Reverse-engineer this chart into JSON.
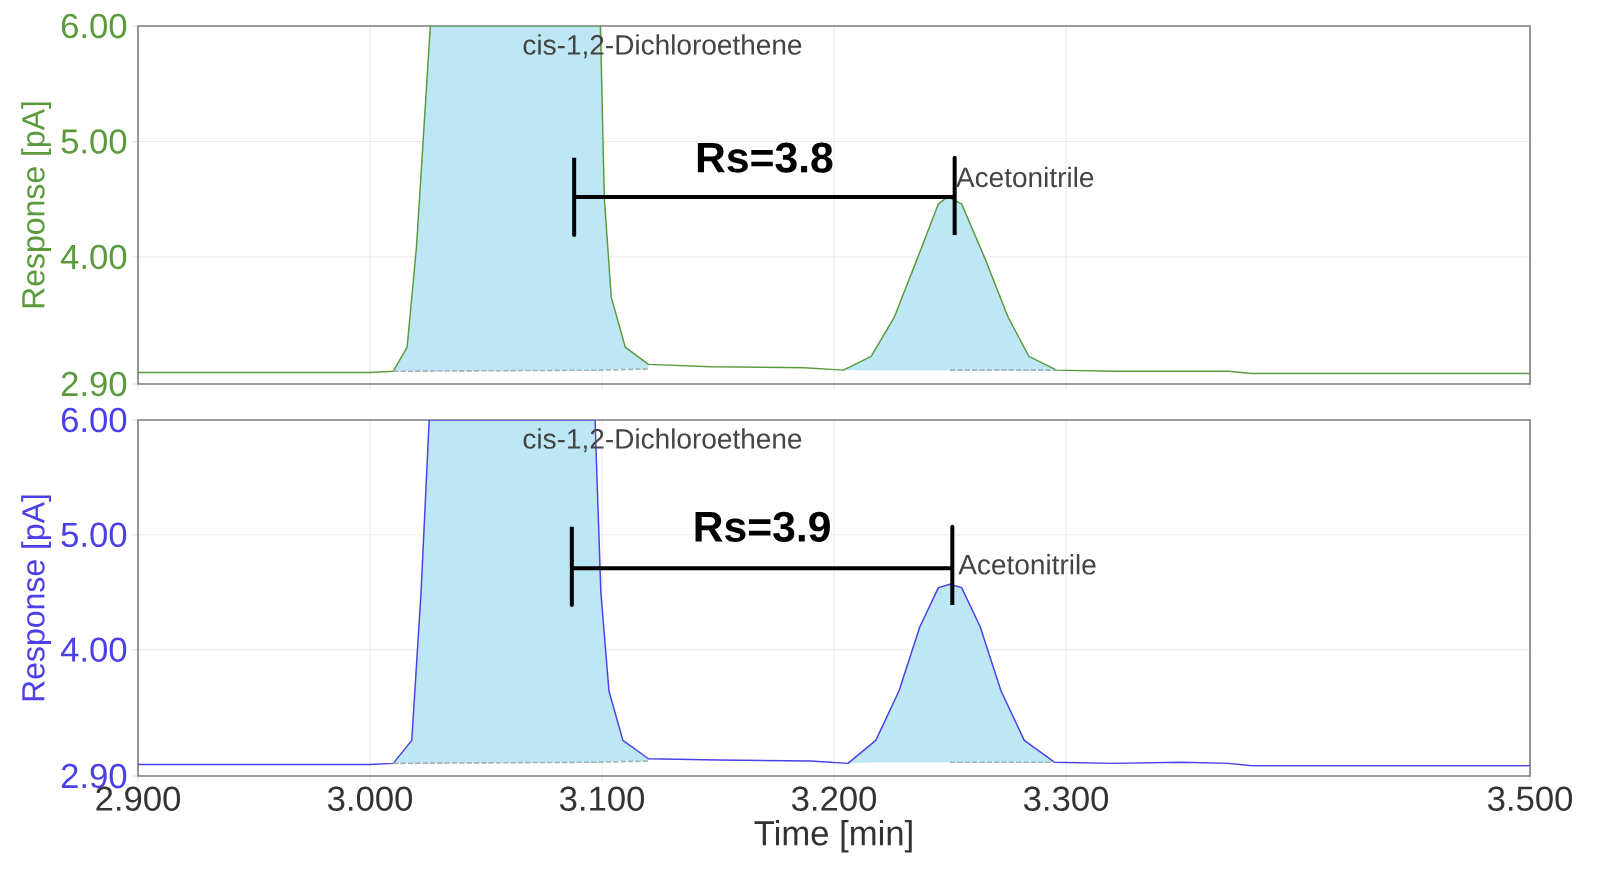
{
  "chart_data": [
    {
      "type": "line",
      "ylabel": "Response [pA]",
      "xlim": [
        2.9,
        3.5
      ],
      "ylim": [
        2.9,
        6.0
      ],
      "xticks": [
        {
          "value": 2.9,
          "label": null
        },
        {
          "value": 3.0,
          "label": null
        },
        {
          "value": 3.1,
          "label": null
        },
        {
          "value": 3.2,
          "label": null
        },
        {
          "value": 3.3,
          "label": null
        },
        {
          "value": 3.5,
          "label": null
        }
      ],
      "yticks": [
        {
          "value": 2.9,
          "label": "2.90"
        },
        {
          "value": 4.0,
          "label": "4.00"
        },
        {
          "value": 5.0,
          "label": "5.00"
        },
        {
          "value": 6.0,
          "label": "6.00"
        }
      ],
      "tick_labels": "y",
      "grid": true,
      "series": [
        {
          "color": "#5b9a3c",
          "x": [
            2.9,
            2.95,
            3.0,
            3.01,
            3.016,
            3.02,
            3.024,
            3.026,
            3.0993,
            3.101,
            3.104,
            3.11,
            3.12,
            3.147,
            3.187,
            3.204,
            3.216,
            3.226,
            3.236,
            3.245,
            3.249,
            3.255,
            3.265,
            3.275,
            3.284,
            3.296,
            3.32,
            3.37,
            3.38,
            3.45,
            3.5
          ],
          "values": [
            3.0,
            3.0,
            3.0,
            3.01,
            3.22,
            4.08,
            5.36,
            6.0,
            6.0,
            4.51,
            3.65,
            3.22,
            3.07,
            3.05,
            3.04,
            3.02,
            3.14,
            3.48,
            3.99,
            4.46,
            4.52,
            4.46,
            3.99,
            3.48,
            3.14,
            3.02,
            3.01,
            3.01,
            2.99,
            2.99,
            2.99
          ],
          "upper": [
            null,
            null,
            null,
            3.01,
            3.22,
            4.08,
            5.36,
            6.0,
            6.0,
            4.51,
            3.65,
            3.22,
            3.07,
            null,
            null,
            3.02,
            3.14,
            3.48,
            3.99,
            4.46,
            4.52,
            4.46,
            3.99,
            3.48,
            3.14,
            3.02,
            null,
            null,
            null,
            null,
            null
          ],
          "lower": [
            null,
            null,
            null,
            3.01,
            3.01,
            3.01,
            3.01,
            3.01,
            3.02,
            3.02,
            3.03,
            3.03,
            3.03,
            null,
            null,
            3.02,
            3.02,
            3.02,
            3.02,
            3.02,
            3.02,
            3.02,
            3.02,
            3.02,
            3.02,
            3.02,
            null,
            null,
            null,
            null,
            null
          ]
        },
        {
          "color": "#9fb5b5",
          "line_style": "dashed",
          "x": [
            3.01,
            3.0993,
            3.12,
            3.204,
            3.25,
            3.296
          ],
          "values": [
            3.01,
            3.02,
            3.03,
            null,
            3.02,
            3.02
          ]
        },
        {
          "name": "Rs=3.8",
          "color": "#000000",
          "x": [
            3.088,
            3.088,
            3.088,
            3.252,
            3.252,
            3.252
          ],
          "values": [
            4.86,
            4.19,
            4.52,
            4.52,
            4.86,
            4.19
          ]
        }
      ],
      "annotations": [
        "cis-1,2-Dichloroethene",
        "Acetonitrile"
      ]
    },
    {
      "type": "line",
      "xlabel": "Time [min]",
      "ylabel": "Response [pA]",
      "xlim": [
        2.9,
        3.5
      ],
      "ylim": [
        2.9,
        6.0
      ],
      "xticks": [
        {
          "value": 2.9,
          "label": "2.900"
        },
        {
          "value": 3.0,
          "label": "3.000"
        },
        {
          "value": 3.1,
          "label": "3.100"
        },
        {
          "value": 3.2,
          "label": "3.200"
        },
        {
          "value": 3.3,
          "label": "3.300"
        },
        {
          "value": 3.5,
          "label": "3.500"
        }
      ],
      "yticks": [
        {
          "value": 2.9,
          "label": "2.90"
        },
        {
          "value": 4.0,
          "label": "4.00"
        },
        {
          "value": 5.0,
          "label": "5.00"
        },
        {
          "value": 6.0,
          "label": "6.00"
        }
      ],
      "grid": true,
      "series": [
        {
          "color": "#4b3fe6",
          "x": [
            2.9,
            2.95,
            3.0,
            3.01,
            3.018,
            3.022,
            3.0255,
            3.097,
            3.0995,
            3.103,
            3.109,
            3.12,
            3.15,
            3.19,
            3.206,
            3.218,
            3.228,
            3.237,
            3.245,
            3.25,
            3.255,
            3.263,
            3.272,
            3.282,
            3.295,
            3.32,
            3.35,
            3.37,
            3.38,
            3.45,
            3.5
          ],
          "values": [
            3.0,
            3.0,
            3.0,
            3.01,
            3.21,
            4.5,
            6.0,
            6.0,
            4.5,
            3.64,
            3.21,
            3.05,
            3.04,
            3.03,
            3.01,
            3.21,
            3.64,
            4.2,
            4.54,
            4.57,
            4.54,
            4.2,
            3.64,
            3.21,
            3.02,
            3.01,
            3.02,
            3.01,
            2.99,
            2.99,
            2.99
          ],
          "upper": [
            null,
            null,
            null,
            3.01,
            3.21,
            4.5,
            6.0,
            6.0,
            4.5,
            3.64,
            3.21,
            3.05,
            null,
            null,
            3.01,
            3.21,
            3.64,
            4.2,
            4.54,
            4.57,
            4.54,
            4.2,
            3.64,
            3.21,
            3.02,
            null,
            null,
            null,
            null,
            null,
            null
          ],
          "lower": [
            null,
            null,
            null,
            3.01,
            3.01,
            3.01,
            3.01,
            3.02,
            3.02,
            3.03,
            3.03,
            3.03,
            null,
            null,
            3.01,
            3.02,
            3.02,
            3.02,
            3.02,
            3.02,
            3.02,
            3.02,
            3.02,
            3.02,
            3.02,
            null,
            null,
            null,
            null,
            null,
            null
          ]
        },
        {
          "color": "#9fb5b5",
          "line_style": "dashed",
          "x": [
            3.01,
            3.097,
            3.12,
            3.206,
            3.25,
            3.295
          ],
          "values": [
            3.01,
            3.02,
            3.03,
            null,
            3.02,
            3.02
          ]
        },
        {
          "name": "Rs=3.9",
          "color": "#000000",
          "x": [
            3.087,
            3.087,
            3.087,
            3.251,
            3.251,
            3.251
          ],
          "values": [
            5.07,
            4.39,
            4.71,
            4.71,
            5.07,
            4.39
          ]
        }
      ],
      "annotations": [
        "cis-1,2-Dichloroethene",
        "Acetonitrile"
      ]
    }
  ]
}
